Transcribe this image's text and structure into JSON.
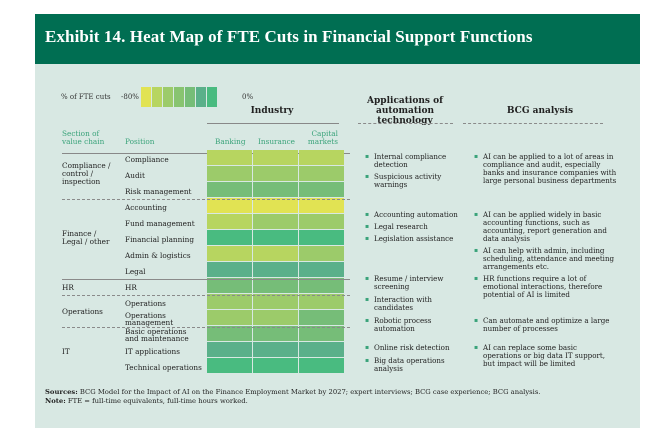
{
  "title": "Exhibit 14. Heat Map of FTE Cuts in Financial Support Functions",
  "legend": {
    "label": "% of FTE cuts",
    "low": "-80%",
    "high": "0%",
    "swatches": [
      "#e1e353",
      "#b7d560",
      "#9ccb6a",
      "#88c470",
      "#76bd78",
      "#5ab08a",
      "#49bb80"
    ]
  },
  "headers": {
    "industry": "Industry",
    "applications": "Applications of automation technology",
    "applications_l1": "Applications of",
    "applications_l2": "automation technology",
    "bcg": "BCG analysis",
    "section_l1": "Section of",
    "section_l2": "value chain",
    "position": "Position",
    "banking": "Banking",
    "insurance": "Insurance",
    "capital_l1": "Capital",
    "capital_l2": "markets"
  },
  "sections": [
    {
      "l1": "Compliance /",
      "l2": "control /",
      "l3": "inspection"
    },
    {
      "l1": "Finance /",
      "l2": "Legal / other"
    },
    {
      "l1": "HR"
    },
    {
      "l1": "Operations"
    },
    {
      "l1": "IT"
    }
  ],
  "rows": [
    {
      "position": "Compliance"
    },
    {
      "position": "Audit"
    },
    {
      "position": "Risk management"
    },
    {
      "position": "Accounting"
    },
    {
      "position": "Fund management"
    },
    {
      "position": "Financial planning"
    },
    {
      "position": "Admin & logistics"
    },
    {
      "position": "Legal"
    },
    {
      "position": "HR"
    },
    {
      "position": "Operations"
    },
    {
      "position": "Operations",
      "position_l2": "management"
    },
    {
      "position": "Basic operations",
      "position_l2": "and maintenance"
    },
    {
      "position": "IT applications"
    },
    {
      "position": "Technical operations"
    }
  ],
  "applications": [
    {
      "l1": "Internal compliance",
      "l2": "detection"
    },
    {
      "l1": "Suspicious activity",
      "l2": "warnings"
    },
    {
      "l1": "Accounting automation"
    },
    {
      "l1": "Legal research"
    },
    {
      "l1": "Legislation assistance"
    },
    {
      "l1": "Resume / interview",
      "l2": "screening"
    },
    {
      "l1": "Interaction with",
      "l2": "candidates"
    },
    {
      "l1": "Robotic process",
      "l2": "automation"
    },
    {
      "l1": "Online risk detection"
    },
    {
      "l1": "Big data operations",
      "l2": "analysis"
    }
  ],
  "analysis": [
    {
      "l1": "AI can be applied to a lot of areas in",
      "l2": "compliance and audit, especially",
      "l3": "banks and insurance companies with",
      "l4": "large personal business departments"
    },
    {
      "l1": "AI can be applied widely in basic",
      "l2": "accounting functions, such as",
      "l3": "accounting, report generation and",
      "l4": "data analysis"
    },
    {
      "l1": "AI can help with admin, including",
      "l2": "scheduling, attendance and meeting",
      "l3": "arrangements etc."
    },
    {
      "l1": "HR functions require a lot of",
      "l2": "emotional interactions, therefore",
      "l3": "potential of AI is limited"
    },
    {
      "l1": "Can automate and optimize a large",
      "l2": "number of processes"
    },
    {
      "l1": "AI can replace some basic",
      "l2": "operations or big data IT support,",
      "l3": "but impact will be limited"
    }
  ],
  "footer": {
    "sources_label": "Sources:",
    "sources": " BCG Model for the Impact of AI on the Finance Employment Market by 2027; expert interviews; BCG case experience; BCG analysis.",
    "note_label": "Note:",
    "note": " FTE = full-time equivalents, full-time hours worked."
  },
  "chart_data": {
    "type": "heatmap",
    "title": "Exhibit 14. Heat Map of FTE Cuts in Financial Support Functions",
    "x": [
      "Banking",
      "Insurance",
      "Capital markets"
    ],
    "y": [
      "Compliance",
      "Audit",
      "Risk management",
      "Accounting",
      "Fund management",
      "Financial planning",
      "Admin & logistics",
      "Legal",
      "HR",
      "Operations",
      "Operations management",
      "Basic operations and maintenance",
      "IT applications",
      "Technical operations"
    ],
    "scale": {
      "label": "% of FTE cuts",
      "min": "-80%",
      "max": "0%",
      "levels": 7
    },
    "level_colors": [
      "#e1e353",
      "#b7d560",
      "#9ccb6a",
      "#88c470",
      "#76bd78",
      "#5ab08a",
      "#49bb80"
    ],
    "levels": [
      [
        2,
        2,
        2
      ],
      [
        3,
        3,
        3
      ],
      [
        5,
        5,
        5
      ],
      [
        1,
        1,
        1
      ],
      [
        2,
        3,
        3
      ],
      [
        7,
        7,
        7
      ],
      [
        2,
        2,
        3
      ],
      [
        6,
        6,
        6
      ],
      [
        5,
        5,
        5
      ],
      [
        3,
        3,
        3
      ],
      [
        3,
        3,
        5
      ],
      [
        5,
        5,
        5
      ],
      [
        6,
        6,
        6
      ],
      [
        7,
        7,
        7
      ]
    ],
    "approx_cut_pct": [
      [
        -60,
        -60,
        -60
      ],
      [
        -47,
        -47,
        -47
      ],
      [
        -20,
        -20,
        -20
      ],
      [
        -80,
        -80,
        -80
      ],
      [
        -60,
        -47,
        -47
      ],
      [
        0,
        0,
        0
      ],
      [
        -60,
        -60,
        -47
      ],
      [
        -13,
        -13,
        -13
      ],
      [
        -20,
        -20,
        -20
      ],
      [
        -47,
        -47,
        -47
      ],
      [
        -47,
        -47,
        -20
      ],
      [
        -20,
        -20,
        -20
      ],
      [
        -13,
        -13,
        -13
      ],
      [
        0,
        0,
        0
      ]
    ]
  }
}
